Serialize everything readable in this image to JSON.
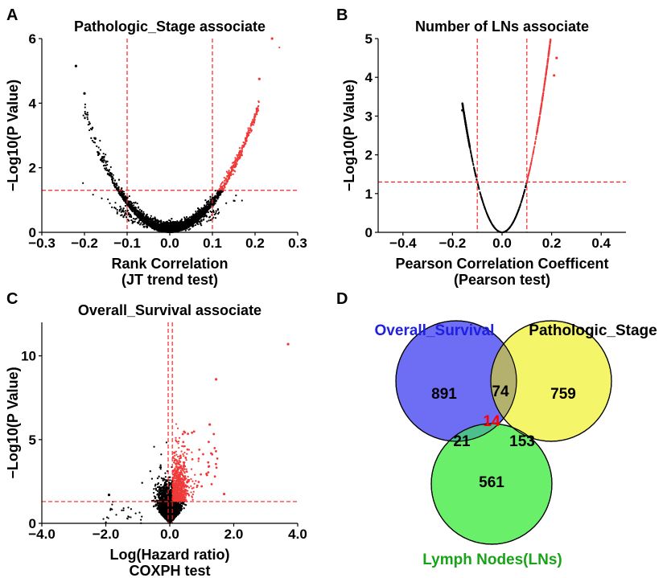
{
  "colors": {
    "significant_points": "#f03a3a",
    "nonsignificant_points": "#000000",
    "threshold_lines": "#ff2222",
    "venn_overall_survival": "#6e6ef5",
    "venn_pathologic_stage": "#f5f56a",
    "venn_lymph_nodes": "#6aef6a",
    "venn_center_text": "#ff0000",
    "venn_label_overall_survival": "#2020e0",
    "venn_label_lymph_nodes": "#1aa21a"
  },
  "chart_data": [
    {
      "panel": "A",
      "type": "scatter",
      "title": "Pathologic_Stage associate",
      "xlabel": "Rank Correlation",
      "xlabel2": "(JT trend test)",
      "ylabel": "-Log10(P Value)",
      "xlim": [
        -0.3,
        0.3
      ],
      "ylim": [
        0,
        6
      ],
      "xticks": [
        -0.3,
        -0.2,
        -0.1,
        0.0,
        0.1,
        0.2,
        0.3
      ],
      "xtick_labels": [
        "−0.3",
        "−0.2",
        "−0.1",
        "0.0",
        "0.1",
        "0.2",
        "0.3"
      ],
      "yticks": [
        0,
        2,
        4,
        6
      ],
      "ytick_labels": [
        "0",
        "2",
        "4",
        "6"
      ],
      "vlines": [
        -0.1,
        0.1
      ],
      "hlines": [
        1.3
      ],
      "shape": "volcano, |r| vs -log10 p; red points where r > 0.1 and -log10 p > 1.3",
      "notable_points": [
        [
          0.24,
          6.0
        ],
        [
          0.21,
          4.75
        ],
        [
          -0.22,
          5.15
        ],
        [
          -0.2,
          4.3
        ]
      ]
    },
    {
      "panel": "B",
      "type": "scatter",
      "title": "Number of LNs associate",
      "xlabel": "Pearson Correlation Coefficent",
      "xlabel2": "(Pearson test)",
      "ylabel": "-Log10(P Value)",
      "xlim": [
        -0.5,
        0.5
      ],
      "ylim": [
        0,
        5
      ],
      "xticks": [
        -0.4,
        -0.2,
        0.0,
        0.2,
        0.4
      ],
      "xtick_labels": [
        "−0.4",
        "−0.2",
        "0.0",
        "0.2",
        "0.4"
      ],
      "yticks": [
        0,
        1,
        2,
        3,
        4,
        5
      ],
      "ytick_labels": [
        "0",
        "1",
        "2",
        "3",
        "4",
        "5"
      ],
      "vlines": [
        -0.1,
        0.1
      ],
      "hlines": [
        1.3
      ],
      "shape": "parabolic curve y = 130*x^2, points from x=-0.16 to x=0.22",
      "notable_points": [
        [
          0.22,
          4.5
        ],
        [
          -0.16,
          3.15
        ],
        [
          0.21,
          4.05
        ]
      ]
    },
    {
      "panel": "C",
      "type": "scatter",
      "title": "Overall_Survival associate",
      "xlabel": "Log(Hazard ratio)",
      "xlabel2": "COXPH test",
      "ylabel": "-Log10(P Value)",
      "xlim": [
        -4.0,
        4.0
      ],
      "ylim": [
        0,
        12
      ],
      "xticks": [
        -4.0,
        -2.0,
        0.0,
        2.0,
        4.0
      ],
      "xtick_labels": [
        "−4.0",
        "−2.0",
        "0.0",
        "2.0",
        "4.0"
      ],
      "yticks": [
        0,
        5,
        10
      ],
      "ytick_labels": [
        "0",
        "5",
        "10"
      ],
      "vlines": [
        -0.05,
        0.08
      ],
      "hlines": [
        1.3
      ],
      "shape": "dense cluster near x=0; red points where x > 0.08 and -log10 p > 1.3",
      "notable_points": [
        [
          3.7,
          10.7
        ],
        [
          1.45,
          8.6
        ],
        [
          1.25,
          5.9
        ],
        [
          -1.9,
          1.7
        ],
        [
          1.7,
          1.75
        ]
      ]
    },
    {
      "panel": "D",
      "type": "venn",
      "sets": [
        "Overall_Survival",
        "Pathologic_Stage",
        "Lymph Nodes(LNs)"
      ],
      "regions": {
        "only_overall_survival": 891,
        "only_pathologic_stage": 759,
        "only_lymph_nodes": 561,
        "overall_survival_and_pathologic_stage": 74,
        "overall_survival_and_lymph_nodes": 21,
        "pathologic_stage_and_lymph_nodes": 153,
        "all_three": 14
      }
    }
  ],
  "panels": {
    "A": {
      "letter": "A"
    },
    "B": {
      "letter": "B"
    },
    "C": {
      "letter": "C"
    },
    "D": {
      "letter": "D"
    }
  },
  "venn_labels": {
    "overall_survival": "Overall_Survival",
    "pathologic_stage": "Pathologic_Stage",
    "lymph_nodes": "Lymph Nodes(LNs)",
    "only_os": "891",
    "only_ps": "759",
    "only_ln": "561",
    "os_ps": "74",
    "os_ln": "21",
    "ps_ln": "153",
    "all": "14"
  }
}
